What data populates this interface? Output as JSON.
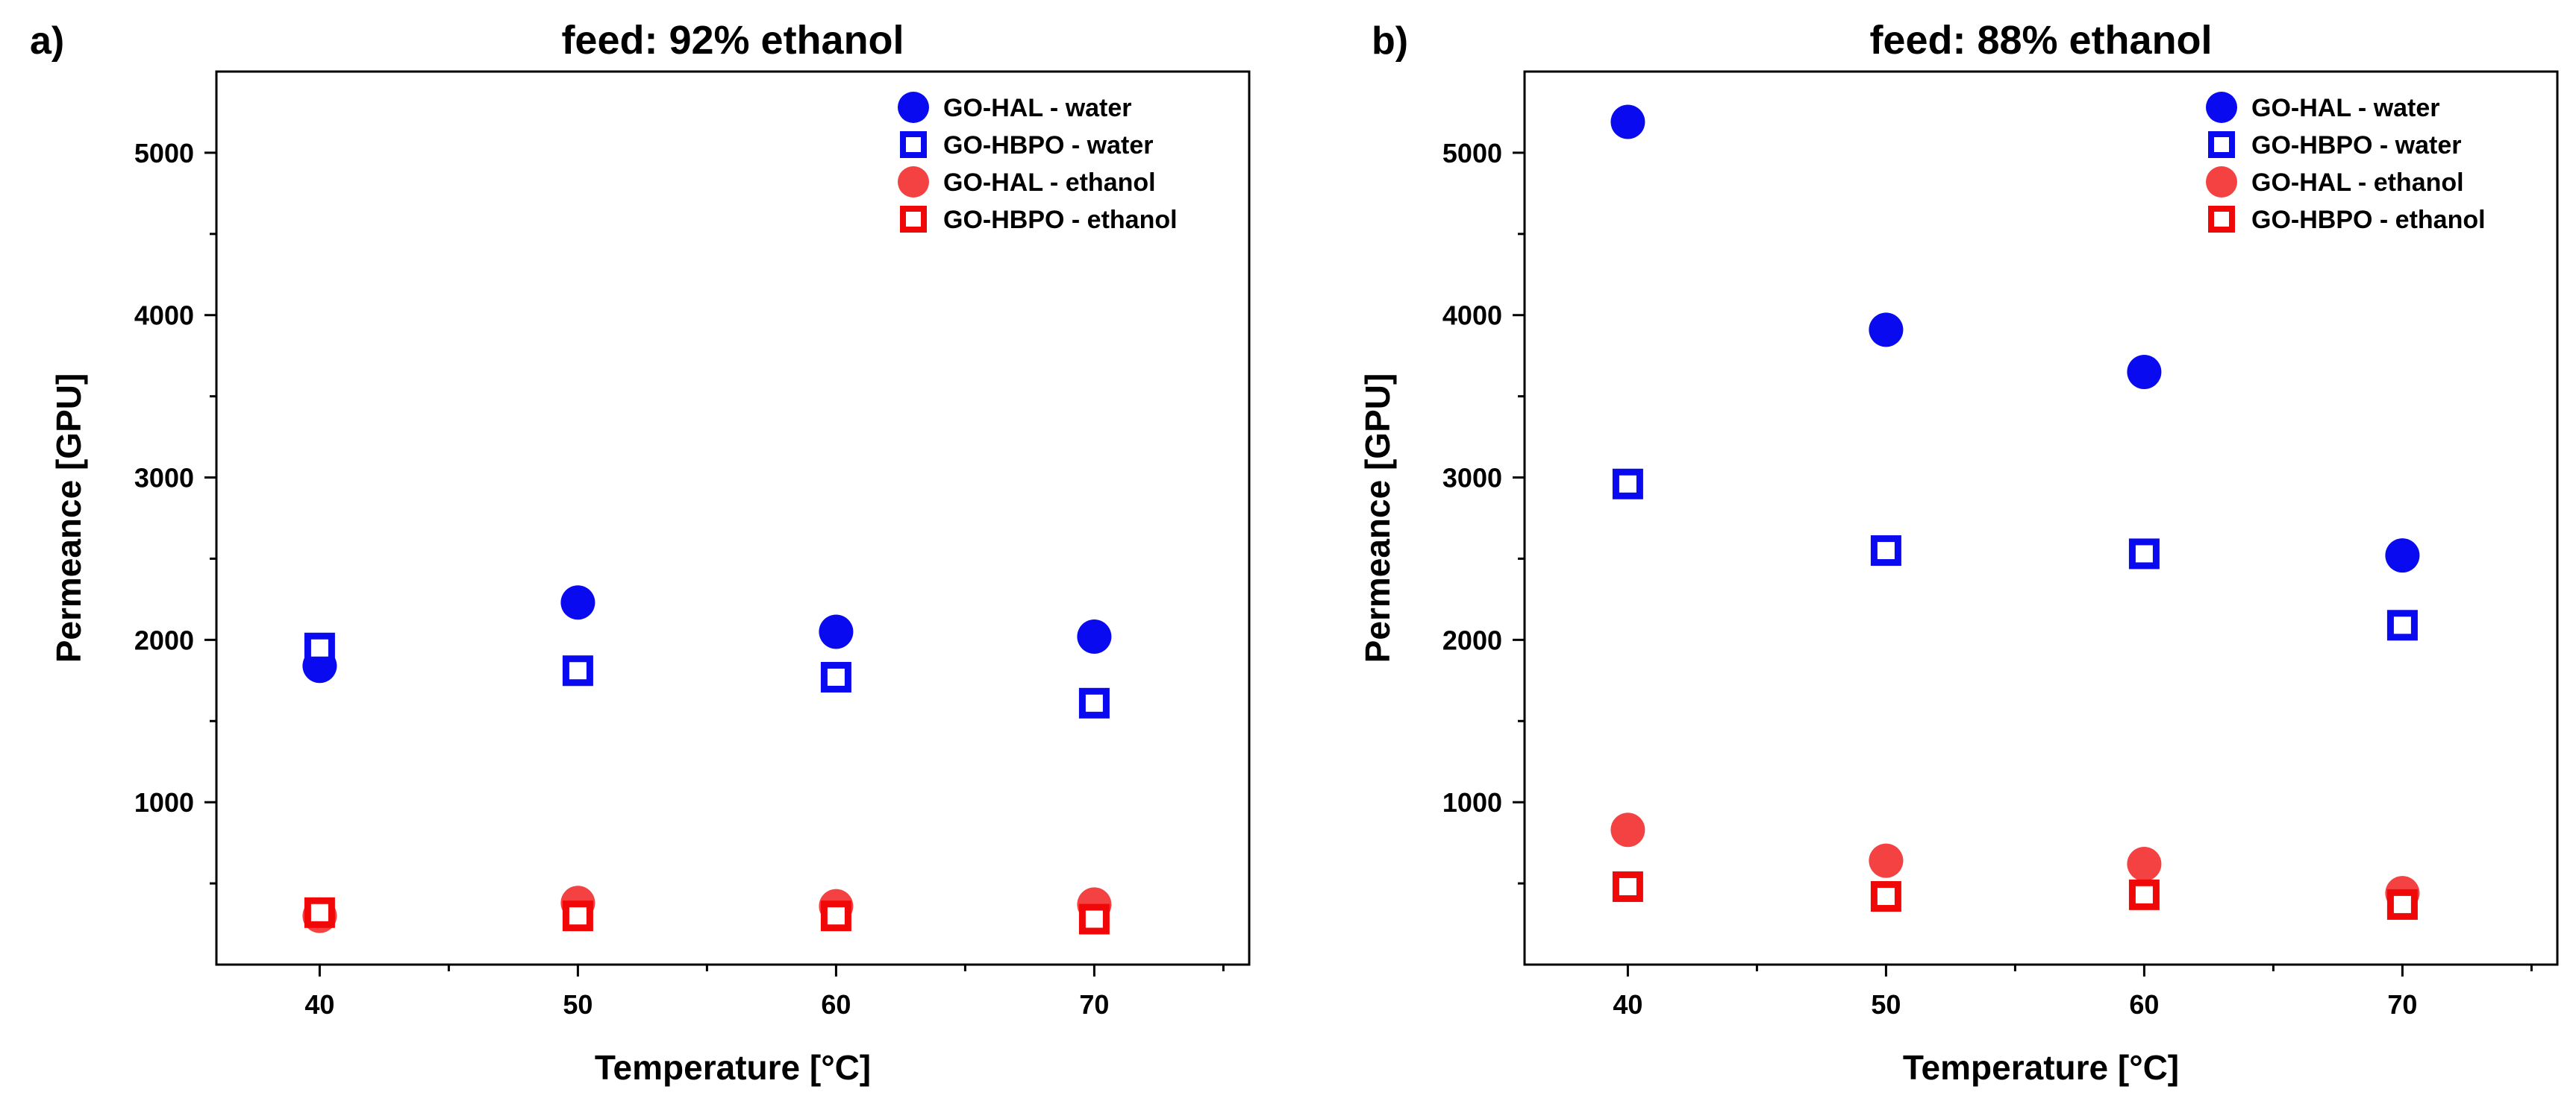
{
  "chart_data": [
    {
      "type": "scatter",
      "panel_label": "a)",
      "title": "feed: 92% ethanol",
      "xlabel": "Temperature [°C]",
      "ylabel": "Permeance [GPU]",
      "xlim": [
        36,
        76
      ],
      "ylim": [
        0,
        5500
      ],
      "xticks": [
        40,
        50,
        60,
        70
      ],
      "yticks": [
        1000,
        2000,
        3000,
        4000,
        5000
      ],
      "legend_position": "top-right",
      "grid": false,
      "series": [
        {
          "name": "GO-HAL - water",
          "marker": "circle",
          "color": "#0a0af0",
          "x": [
            40,
            50,
            60,
            70
          ],
          "y": [
            1840,
            2230,
            2050,
            2020
          ]
        },
        {
          "name": "GO-HBPO - water",
          "marker": "square",
          "color": "#0a0af0",
          "x": [
            40,
            50,
            60,
            70
          ],
          "y": [
            1950,
            1810,
            1770,
            1610
          ]
        },
        {
          "name": "GO-HAL - ethanol",
          "marker": "circle",
          "color": "#f44242",
          "x": [
            40,
            50,
            60,
            70
          ],
          "y": [
            300,
            380,
            360,
            370
          ]
        },
        {
          "name": "GO-HBPO - ethanol",
          "marker": "square",
          "color": "#f00808",
          "x": [
            40,
            50,
            60,
            70
          ],
          "y": [
            320,
            300,
            300,
            280
          ]
        }
      ]
    },
    {
      "type": "scatter",
      "panel_label": "b)",
      "title": "feed: 88% ethanol",
      "xlabel": "Temperature [°C]",
      "ylabel": "Permeance [GPU]",
      "xlim": [
        36,
        76
      ],
      "ylim": [
        0,
        5500
      ],
      "xticks": [
        40,
        50,
        60,
        70
      ],
      "yticks": [
        1000,
        2000,
        3000,
        4000,
        5000
      ],
      "legend_position": "top-right",
      "grid": false,
      "series": [
        {
          "name": "GO-HAL - water",
          "marker": "circle",
          "color": "#0a0af0",
          "x": [
            40,
            50,
            60,
            70
          ],
          "y": [
            5190,
            3910,
            3650,
            2520
          ]
        },
        {
          "name": "GO-HBPO - water",
          "marker": "square",
          "color": "#0a0af0",
          "x": [
            40,
            50,
            60,
            70
          ],
          "y": [
            2960,
            2550,
            2530,
            2090
          ]
        },
        {
          "name": "GO-HAL - ethanol",
          "marker": "circle",
          "color": "#f44242",
          "x": [
            40,
            50,
            60,
            70
          ],
          "y": [
            830,
            640,
            620,
            440
          ]
        },
        {
          "name": "GO-HBPO - ethanol",
          "marker": "square",
          "color": "#f00808",
          "x": [
            40,
            50,
            60,
            70
          ],
          "y": [
            480,
            420,
            430,
            370
          ]
        }
      ]
    }
  ]
}
